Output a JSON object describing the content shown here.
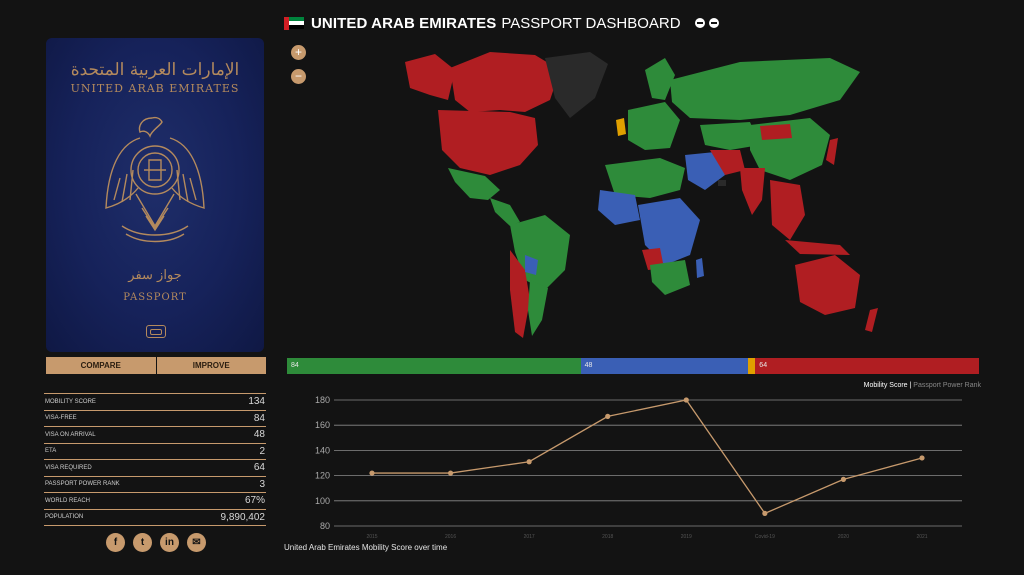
{
  "header": {
    "title_strong": "UNITED ARAB EMIRATES",
    "title_light": "PASSPORT DASHBOARD",
    "flag_colors": [
      "#d11f25",
      "#00843d",
      "#ffffff",
      "#000000"
    ]
  },
  "passport": {
    "arabic_top": "الإمارات العربية المتحدة",
    "country": "UNITED ARAB EMIRATES",
    "arabic_passport": "جواز سفر",
    "label": "PASSPORT",
    "cover_color": "#16225a",
    "print_color": "#b48a5d"
  },
  "buttons": {
    "compare": "COMPARE",
    "improve": "IMPROVE"
  },
  "stats": [
    {
      "label": "MOBILITY SCORE",
      "value": "134"
    },
    {
      "label": "VISA-FREE",
      "value": "84"
    },
    {
      "label": "VISA ON ARRIVAL",
      "value": "48"
    },
    {
      "label": "ETA",
      "value": "2"
    },
    {
      "label": "VISA REQUIRED",
      "value": "64"
    },
    {
      "label": "PASSPORT POWER RANK",
      "value": "3"
    },
    {
      "label": "WORLD REACH",
      "value": "67%"
    },
    {
      "label": "POPULATION",
      "value": "9,890,402"
    }
  ],
  "social_icons": [
    "facebook-icon",
    "twitter-icon",
    "linkedin-icon",
    "email-icon"
  ],
  "map": {
    "zoom_in": "+",
    "zoom_out": "−",
    "legend_colors": {
      "visa_free": "#2e8b3a",
      "visa_on_arrival": "#3a5fb5",
      "eta": "#e0a000",
      "visa_required": "#b01e22",
      "self": "#2a2a2a"
    }
  },
  "breakdown": [
    {
      "key": "visa_free",
      "label": "84",
      "value": 84,
      "color": "#2e8b3a"
    },
    {
      "key": "visa_on_arrival",
      "label": "48",
      "value": 48,
      "color": "#3a5fb5"
    },
    {
      "key": "eta",
      "label": "",
      "value": 2,
      "color": "#e0a000"
    },
    {
      "key": "visa_required",
      "label": "64",
      "value": 64,
      "color": "#b01e22"
    }
  ],
  "chart_legend": {
    "active": "Mobility Score",
    "separator": " | ",
    "inactive": "Passport Power Rank"
  },
  "chart_caption": "United Arab Emirates Mobility Score over time",
  "chart_data": {
    "type": "line",
    "categories": [
      "2015",
      "2016",
      "2017",
      "2018",
      "2019",
      "Covid-19",
      "2020",
      "2021"
    ],
    "series": [
      {
        "name": "Mobility Score",
        "values": [
          122,
          122,
          131,
          167,
          180,
          90,
          117,
          134
        ]
      }
    ],
    "yticks": [
      80,
      100,
      120,
      140,
      160,
      180
    ],
    "ylim": [
      80,
      180
    ],
    "grid": true,
    "line_color": "#c79a6d"
  }
}
